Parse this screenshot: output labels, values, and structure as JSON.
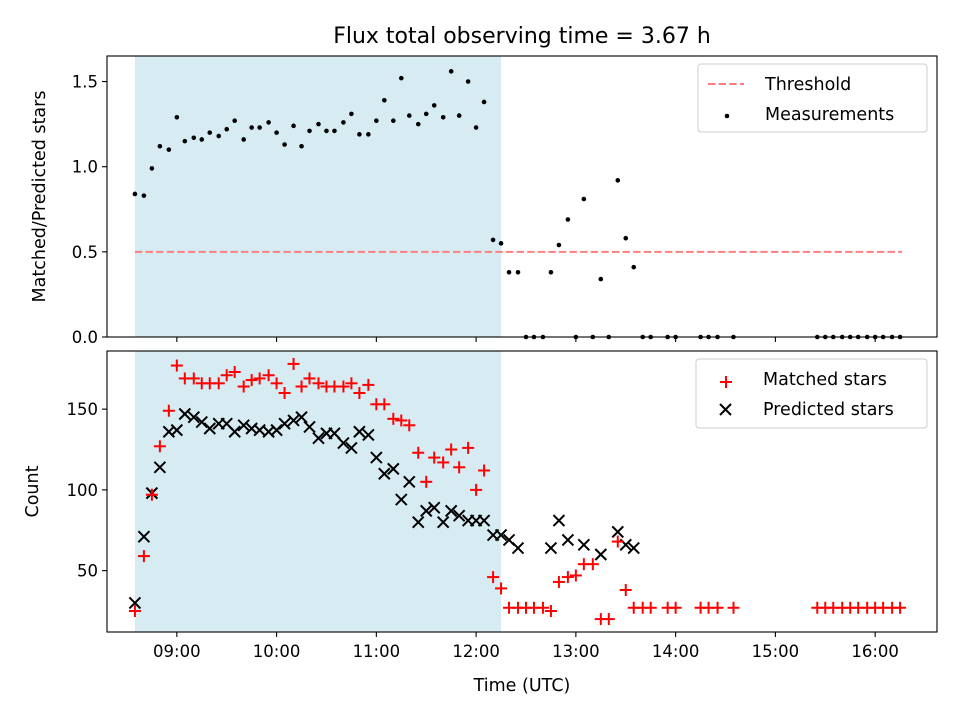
{
  "figure": {
    "title": "Flux total observing time = 3.67 h"
  },
  "chart_data": [
    {
      "type": "scatter",
      "panel": "top",
      "ylabel": "Matched/Predicted stars",
      "xlabel": "",
      "xlim_hours": [
        8.3,
        16.62
      ],
      "ylim": [
        0,
        1.65
      ],
      "yticks": [
        0.0,
        0.5,
        1.0,
        1.5
      ],
      "ytick_labels": [
        "0.0",
        "0.5",
        "1.0",
        "1.5"
      ],
      "shaded_region_hours": [
        8.58,
        12.25
      ],
      "shaded_color": "#add8e6",
      "threshold": {
        "name": "Threshold",
        "y": 0.5,
        "x_range_hours": [
          8.58,
          16.27
        ],
        "color": "#ff7f7f",
        "style": "dashed"
      },
      "legend": {
        "placement": "top-right",
        "entries": [
          "Threshold",
          "Measurements"
        ]
      },
      "series": [
        {
          "name": "Measurements",
          "color": "#000000",
          "marker": "dot",
          "x_hours": [
            8.58,
            8.67,
            8.75,
            8.83,
            8.92,
            9.0,
            9.08,
            9.17,
            9.25,
            9.33,
            9.42,
            9.5,
            9.58,
            9.67,
            9.75,
            9.83,
            9.92,
            10.0,
            10.08,
            10.17,
            10.25,
            10.33,
            10.42,
            10.5,
            10.58,
            10.67,
            10.75,
            10.83,
            10.92,
            11.0,
            11.08,
            11.17,
            11.25,
            11.33,
            11.42,
            11.5,
            11.58,
            11.67,
            11.75,
            11.83,
            11.92,
            12.0,
            12.08,
            12.17,
            12.25,
            12.33,
            12.42,
            12.5,
            12.58,
            12.67,
            12.75,
            12.83,
            12.92,
            13.0,
            13.08,
            13.17,
            13.25,
            13.33,
            13.42,
            13.5,
            13.58,
            13.67,
            13.75,
            13.92,
            14.0,
            14.25,
            14.33,
            14.42,
            14.58,
            15.42,
            15.5,
            15.58,
            15.67,
            15.75,
            15.83,
            15.92,
            16.0,
            16.08,
            16.17,
            16.25
          ],
          "y": [
            0.84,
            0.83,
            0.99,
            1.12,
            1.1,
            1.29,
            1.15,
            1.17,
            1.16,
            1.2,
            1.18,
            1.22,
            1.27,
            1.16,
            1.23,
            1.23,
            1.26,
            1.2,
            1.13,
            1.24,
            1.12,
            1.21,
            1.25,
            1.21,
            1.21,
            1.26,
            1.31,
            1.19,
            1.19,
            1.27,
            1.39,
            1.27,
            1.52,
            1.3,
            1.25,
            1.31,
            1.36,
            1.29,
            1.56,
            1.3,
            1.5,
            1.23,
            1.38,
            0.57,
            0.55,
            0.38,
            0.38,
            0.0,
            0.0,
            0.0,
            0.38,
            0.54,
            0.69,
            0.0,
            0.81,
            0.0,
            0.34,
            0.0,
            0.92,
            0.58,
            0.41,
            0.0,
            0.0,
            0.0,
            0.0,
            0.0,
            0.0,
            0.0,
            0.0,
            0.0,
            0.0,
            0.0,
            0.0,
            0.0,
            0.0,
            0.0,
            0.0,
            0.0,
            0.0,
            0.0
          ]
        }
      ]
    },
    {
      "type": "scatter",
      "panel": "bottom",
      "ylabel": "Count",
      "xlabel": "Time (UTC)",
      "xlim_hours": [
        8.3,
        16.62
      ],
      "ylim": [
        12,
        186
      ],
      "yticks": [
        50,
        100,
        150
      ],
      "ytick_labels": [
        "50",
        "100",
        "150"
      ],
      "xticks_hours": [
        9,
        10,
        11,
        12,
        13,
        14,
        15,
        16
      ],
      "xtick_labels": [
        "09:00",
        "10:00",
        "11:00",
        "12:00",
        "13:00",
        "14:00",
        "15:00",
        "16:00"
      ],
      "shaded_region_hours": [
        8.58,
        12.25
      ],
      "shaded_color": "#add8e6",
      "legend": {
        "placement": "top-right",
        "entries": [
          "Matched stars",
          "Predicted stars"
        ]
      },
      "series": [
        {
          "name": "Matched stars",
          "color": "#ff0000",
          "marker": "plus",
          "x_hours": [
            8.58,
            8.67,
            8.75,
            8.83,
            8.92,
            9.0,
            9.08,
            9.17,
            9.25,
            9.33,
            9.42,
            9.5,
            9.58,
            9.67,
            9.75,
            9.83,
            9.92,
            10.0,
            10.08,
            10.17,
            10.25,
            10.33,
            10.42,
            10.5,
            10.58,
            10.67,
            10.75,
            10.83,
            10.92,
            11.0,
            11.08,
            11.17,
            11.25,
            11.33,
            11.42,
            11.5,
            11.58,
            11.67,
            11.75,
            11.83,
            11.92,
            12.0,
            12.08,
            12.17,
            12.25,
            12.33,
            12.42,
            12.5,
            12.58,
            12.67,
            12.75,
            12.83,
            12.92,
            13.0,
            13.08,
            13.17,
            13.25,
            13.33,
            13.42,
            13.5,
            13.58,
            13.67,
            13.75,
            13.92,
            14.0,
            14.25,
            14.33,
            14.42,
            14.58,
            15.42,
            15.5,
            15.58,
            15.67,
            15.75,
            15.83,
            15.92,
            16.0,
            16.08,
            16.17,
            16.25
          ],
          "y": [
            25,
            59,
            97,
            127,
            149,
            177,
            169,
            169,
            166,
            166,
            166,
            171,
            173,
            164,
            168,
            169,
            171,
            166,
            160,
            178,
            164,
            169,
            166,
            164,
            164,
            164,
            166,
            160,
            165,
            153,
            153,
            144,
            143,
            140,
            123,
            105,
            120,
            117,
            125,
            114,
            126,
            100,
            112,
            46,
            39,
            27,
            27,
            27,
            27,
            27,
            25,
            43,
            46,
            47,
            54,
            54,
            20,
            20,
            68,
            38,
            27,
            27,
            27,
            27,
            27,
            27,
            27,
            27,
            27,
            27,
            27,
            27,
            27,
            27,
            27,
            27,
            27,
            27,
            27,
            27
          ]
        },
        {
          "name": "Predicted stars",
          "color": "#000000",
          "marker": "x",
          "x_hours": [
            8.58,
            8.67,
            8.75,
            8.83,
            8.92,
            9.0,
            9.08,
            9.17,
            9.25,
            9.33,
            9.42,
            9.5,
            9.58,
            9.67,
            9.75,
            9.83,
            9.92,
            10.0,
            10.08,
            10.17,
            10.25,
            10.33,
            10.42,
            10.5,
            10.58,
            10.67,
            10.75,
            10.83,
            10.92,
            11.0,
            11.08,
            11.17,
            11.25,
            11.33,
            11.42,
            11.5,
            11.58,
            11.67,
            11.75,
            11.83,
            11.92,
            12.0,
            12.08,
            12.17,
            12.25,
            12.33,
            12.42,
            12.75,
            12.83,
            12.92,
            13.08,
            13.25,
            13.42,
            13.5,
            13.58
          ],
          "y": [
            30,
            71,
            98,
            114,
            136,
            137,
            147,
            145,
            142,
            138,
            141,
            141,
            136,
            140,
            138,
            137,
            136,
            137,
            141,
            143,
            145,
            139,
            132,
            135,
            135,
            129,
            126,
            136,
            134,
            120,
            110,
            113,
            94,
            105,
            80,
            87,
            89,
            80,
            87,
            84,
            81,
            81,
            81,
            72,
            72,
            69,
            64,
            64,
            81,
            69,
            66,
            60,
            74,
            66,
            64
          ]
        }
      ]
    }
  ]
}
